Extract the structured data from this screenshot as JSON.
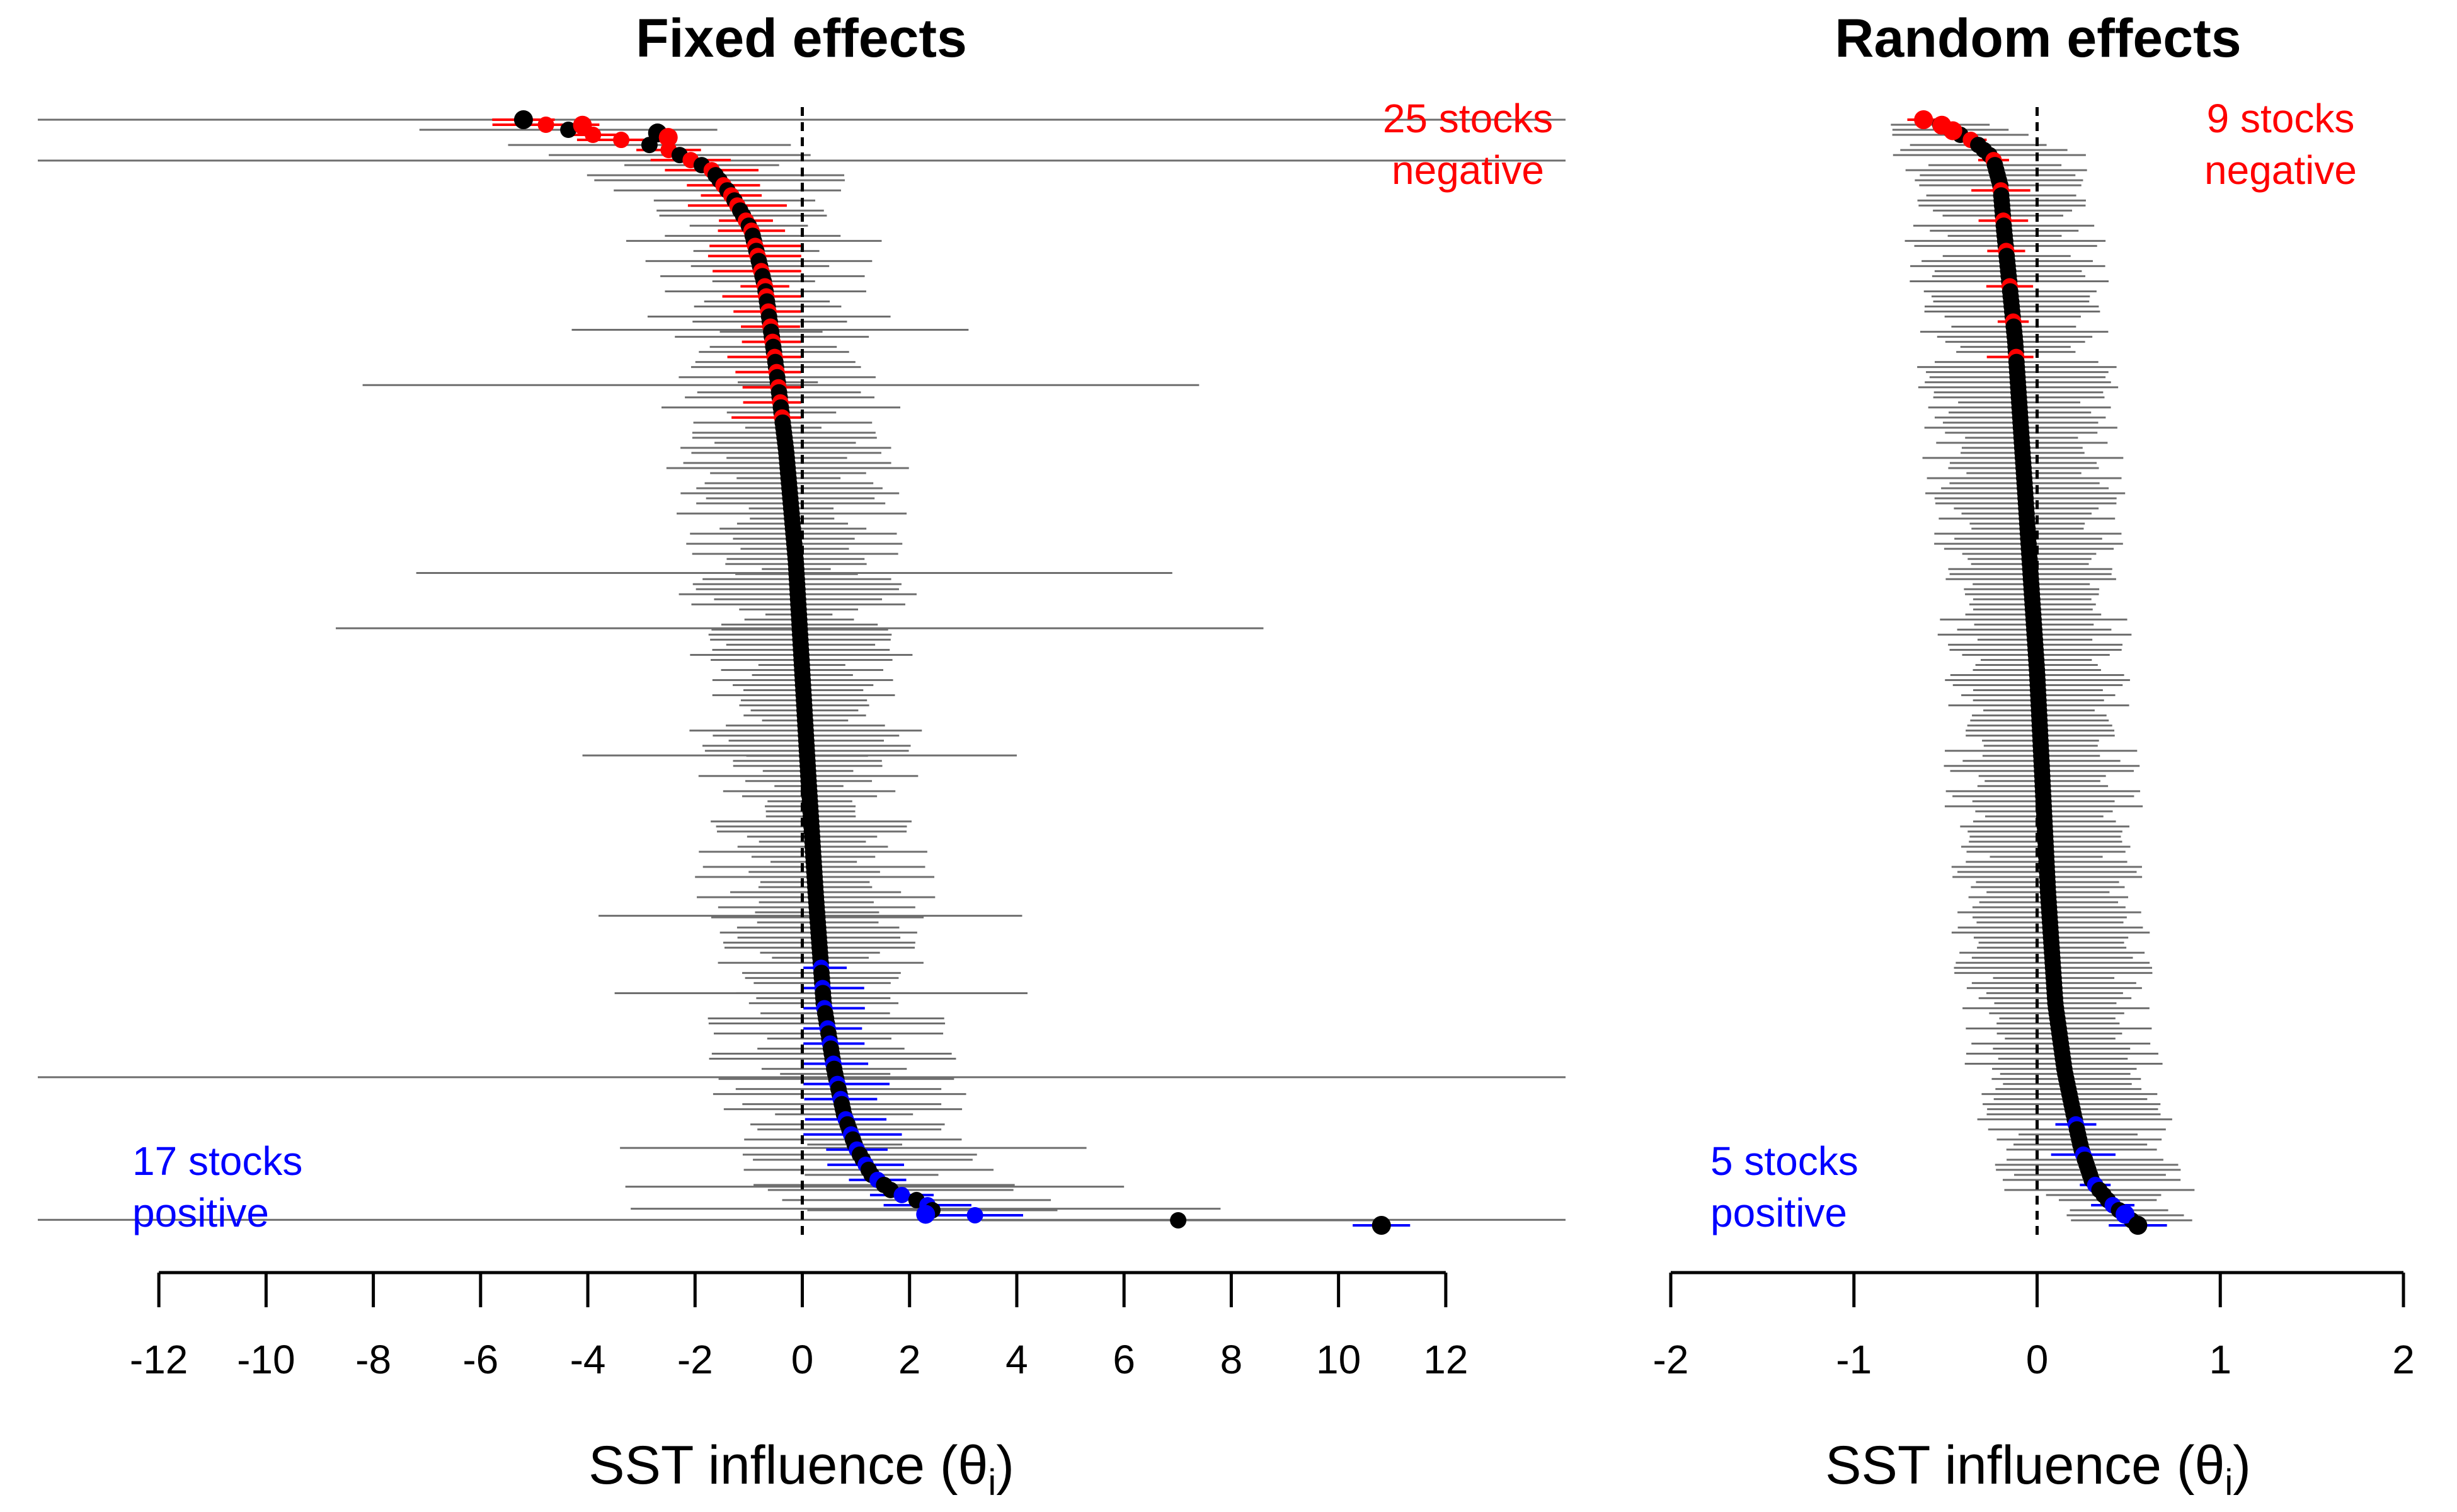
{
  "chart_data": [
    {
      "type": "scatter",
      "title": "Fixed effects",
      "xlabel": "SST influence (θ",
      "xlabel_sub": "i",
      "xlabel_close": ")",
      "xlim": [
        -13.2,
        13.2
      ],
      "ticks": [
        -12,
        -10,
        -8,
        -6,
        -4,
        -2,
        0,
        2,
        4,
        6,
        8,
        10,
        12
      ],
      "tick_labels": [
        "-12",
        "-10",
        "-8",
        "-6",
        "-4",
        "-2",
        "0",
        "2",
        "4",
        "6",
        "8",
        "10",
        "12"
      ],
      "reference_line_x": 0,
      "n_stocks": 220,
      "annotations": {
        "negative": {
          "line1": "25 stocks",
          "line2": "negative",
          "color": "#ff0000",
          "position": "top-right"
        },
        "positive": {
          "line1": "17 stocks",
          "line2": "positive",
          "color": "#0000ff",
          "position": "bottom-left"
        }
      },
      "curve_anchors": {
        "rank_fraction": [
          0,
          0.012,
          0.025,
          0.045,
          0.07,
          0.1,
          0.15,
          0.22,
          0.3,
          0.4,
          0.5,
          0.6,
          0.7,
          0.8,
          0.86,
          0.9,
          0.93,
          0.955,
          0.97,
          0.98,
          0.99,
          1.0
        ],
        "estimate": [
          -5.2,
          -4.1,
          -2.6,
          -1.7,
          -1.3,
          -0.95,
          -0.7,
          -0.5,
          -0.3,
          -0.12,
          0.0,
          0.12,
          0.25,
          0.4,
          0.6,
          0.78,
          1.0,
          1.3,
          1.7,
          2.3,
          2.5,
          10.8
        ]
      },
      "highlighted_points": [
        {
          "estimate": -5.2,
          "rank_fraction": 0.0,
          "group": "other"
        },
        {
          "estimate": -4.1,
          "rank_fraction": 0.005,
          "group": "negative"
        },
        {
          "estimate": -2.7,
          "rank_fraction": 0.012,
          "group": "other"
        },
        {
          "estimate": -2.5,
          "rank_fraction": 0.016,
          "group": "negative"
        },
        {
          "estimate": 2.3,
          "rank_fraction": 0.99,
          "group": "positive"
        },
        {
          "estimate": 10.8,
          "rank_fraction": 1.0,
          "group": "other"
        }
      ],
      "full_width_intervals_rank_fraction": [
        0.0,
        0.037,
        0.866,
        0.995
      ],
      "wide_intervals": [
        {
          "rank_fraction": 0.19,
          "lo": -4.3,
          "hi": 3.1
        },
        {
          "rank_fraction": 0.24,
          "lo": -8.2,
          "hi": 7.4
        },
        {
          "rank_fraction": 0.41,
          "lo": -7.2,
          "hi": 6.9
        },
        {
          "rank_fraction": 0.46,
          "lo": -8.7,
          "hi": 8.6
        },
        {
          "rank_fraction": 0.575,
          "lo": -4.1,
          "hi": 4.0
        },
        {
          "rank_fraction": 0.72,
          "lo": -3.8,
          "hi": 4.1
        },
        {
          "rank_fraction": 0.79,
          "lo": -3.5,
          "hi": 4.2
        },
        {
          "rank_fraction": 0.93,
          "lo": -3.4,
          "hi": 5.3
        },
        {
          "rank_fraction": 0.965,
          "lo": -3.3,
          "hi": 6.0
        },
        {
          "rank_fraction": 0.985,
          "lo": -3.2,
          "hi": 7.8
        }
      ]
    },
    {
      "type": "scatter",
      "title": "Random effects",
      "xlabel": "SST influence (θ",
      "xlabel_sub": "i",
      "xlabel_close": ")",
      "xlim": [
        -2.0,
        2.0
      ],
      "ticks": [
        -2,
        -1,
        0,
        1,
        2
      ],
      "tick_labels": [
        "-2",
        "-1",
        "0",
        "1",
        "2"
      ],
      "reference_line_x": 0,
      "n_stocks": 220,
      "annotations": {
        "negative": {
          "line1": "9 stocks",
          "line2": "negative",
          "color": "#ff0000",
          "position": "top-right"
        },
        "positive": {
          "line1": "5 stocks",
          "line2": "positive",
          "color": "#0000ff",
          "position": "bottom-left"
        }
      },
      "curve_anchors": {
        "rank_fraction": [
          0,
          0.005,
          0.012,
          0.02,
          0.035,
          0.06,
          0.1,
          0.2,
          0.3,
          0.4,
          0.5,
          0.6,
          0.7,
          0.8,
          0.86,
          0.9,
          0.93,
          0.96,
          0.98,
          1.0
        ],
        "estimate": [
          -0.62,
          -0.52,
          -0.44,
          -0.34,
          -0.24,
          -0.2,
          -0.18,
          -0.12,
          -0.08,
          -0.04,
          0.0,
          0.03,
          0.06,
          0.1,
          0.15,
          0.2,
          0.24,
          0.3,
          0.4,
          0.55
        ]
      },
      "highlighted_points": [
        {
          "estimate": -0.62,
          "rank_fraction": 0.0,
          "group": "negative"
        },
        {
          "estimate": -0.52,
          "rank_fraction": 0.005,
          "group": "negative"
        },
        {
          "estimate": -0.46,
          "rank_fraction": 0.01,
          "group": "negative"
        },
        {
          "estimate": 0.48,
          "rank_fraction": 0.99,
          "group": "positive"
        },
        {
          "estimate": 0.55,
          "rank_fraction": 1.0,
          "group": "other"
        }
      ],
      "interval_halfwidth": 0.5
    }
  ],
  "colors": {
    "point": "#000000",
    "interval": "#6e6e6e",
    "negative": "#ff0000",
    "positive": "#0000ff"
  }
}
